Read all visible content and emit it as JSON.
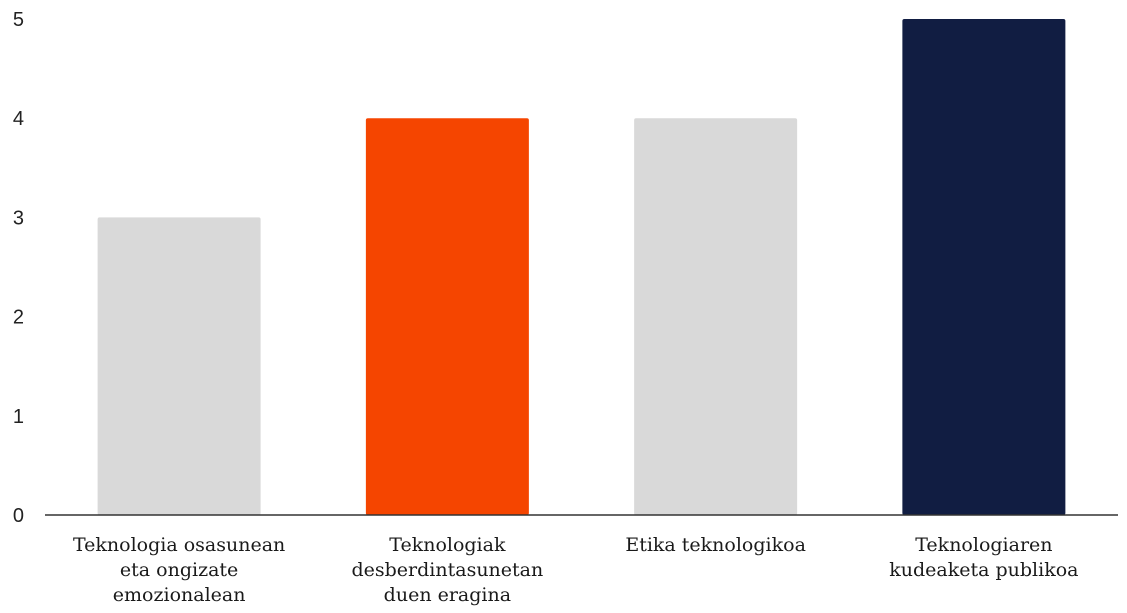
{
  "chart_data": {
    "type": "bar",
    "categories": [
      [
        "Teknologia osasunean",
        "eta ongizate",
        "emozionalean"
      ],
      [
        "Teknologiak",
        "desberdintasunetan",
        "duen eragina"
      ],
      [
        "Etika teknologikoa"
      ],
      [
        "Teknologiaren",
        "kudeaketa publikoa"
      ]
    ],
    "values": [
      3,
      4,
      4,
      5
    ],
    "bar_colors": [
      "#d9d9d9",
      "#f54500",
      "#d9d9d9",
      "#111d42"
    ],
    "ylim": [
      0,
      5
    ],
    "yticks": [
      "0",
      "1",
      "2",
      "3",
      "4",
      "5"
    ],
    "title": "",
    "xlabel": "",
    "ylabel": "",
    "grid": false,
    "legend": "none"
  }
}
